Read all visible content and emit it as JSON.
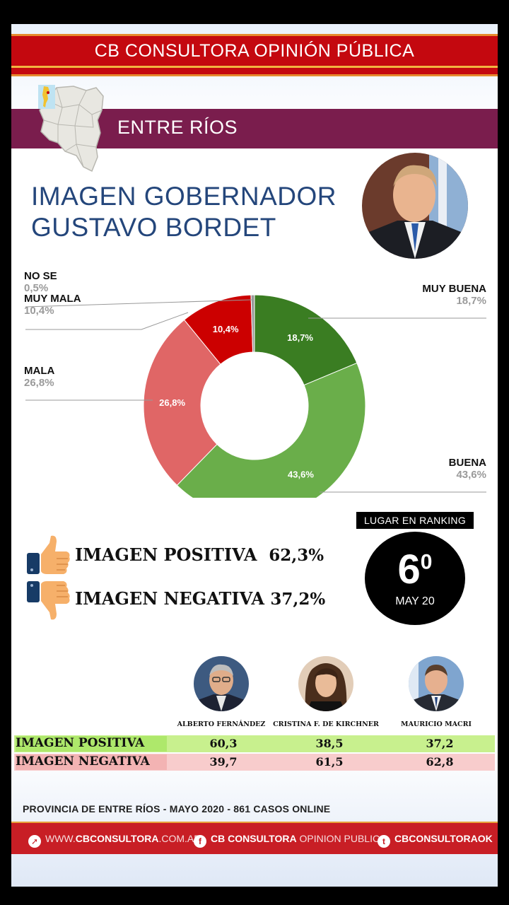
{
  "header": {
    "banner_title": "CB CONSULTORA OPINIÓN PÚBLICA",
    "region": "ENTRE RÍOS",
    "title_line1": "IMAGEN GOBERNADOR",
    "title_line2": "GUSTAVO BORDET"
  },
  "colors": {
    "muy_buena": "#3a7d22",
    "buena": "#6aae4a",
    "mala": "#e06666",
    "muy_mala": "#cc0000",
    "no_se": "#999999",
    "brand_red": "#c4080f",
    "region_band": "#7a1d4d",
    "title_blue": "#24467b"
  },
  "chart_data": {
    "type": "pie",
    "donut": true,
    "categories": [
      "MUY BUENA",
      "BUENA",
      "MALA",
      "MUY MALA",
      "NO SE"
    ],
    "values": [
      18.7,
      43.6,
      26.8,
      10.4,
      0.5
    ],
    "value_labels": [
      "18,7%",
      "43,6%",
      "26,8%",
      "10,4%",
      "0,5%"
    ],
    "colors": [
      "#3a7d22",
      "#6aae4a",
      "#e06666",
      "#cc0000",
      "#999999"
    ],
    "start_angle_deg": 0,
    "direction": "clockwise"
  },
  "labels": {
    "no_se": {
      "name": "NO SE",
      "value": "0,5%"
    },
    "muy_mala": {
      "name": "MUY MALA",
      "value": "10,4%"
    },
    "mala": {
      "name": "MALA",
      "value": "26,8%"
    },
    "muy_buena": {
      "name": "MUY BUENA",
      "value": "18,7%"
    },
    "buena": {
      "name": "BUENA",
      "value": "43,6%"
    }
  },
  "summary": {
    "positive_label": "IMAGEN POSITIVA",
    "positive_value": "62,3%",
    "negative_label": "IMAGEN NEGATIVA",
    "negative_value": "37,2%"
  },
  "ranking": {
    "label": "LUGAR EN RANKING",
    "number": "6",
    "ordinal": "0",
    "date": "MAY 20"
  },
  "comparison": {
    "politicians": [
      "ALBERTO FERNÁNDEZ",
      "CRISTINA F. DE KIRCHNER",
      "MAURICIO MACRI"
    ],
    "rows": [
      {
        "label": "IMAGEN POSITIVA",
        "values": [
          "60,3",
          "38,5",
          "37,2"
        ]
      },
      {
        "label": "IMAGEN NEGATIVA",
        "values": [
          "39,7",
          "61,5",
          "62,8"
        ]
      }
    ]
  },
  "footer": {
    "note": "PROVINCIA DE ENTRE RÍOS - MAYO 2020 -  861 CASOS ONLINE",
    "web_prefix": "WWW.",
    "web_bold": "CBCONSULTORA",
    "web_suffix": ".COM.AR",
    "fb_bold": "CB CONSULTORA",
    "fb_thin": "OPINION PUBLICA",
    "tw_bold": "CBCONSULTORAOK",
    "web_icon": "cursor-icon",
    "fb_icon": "facebook-icon",
    "tw_icon": "twitter-icon"
  }
}
